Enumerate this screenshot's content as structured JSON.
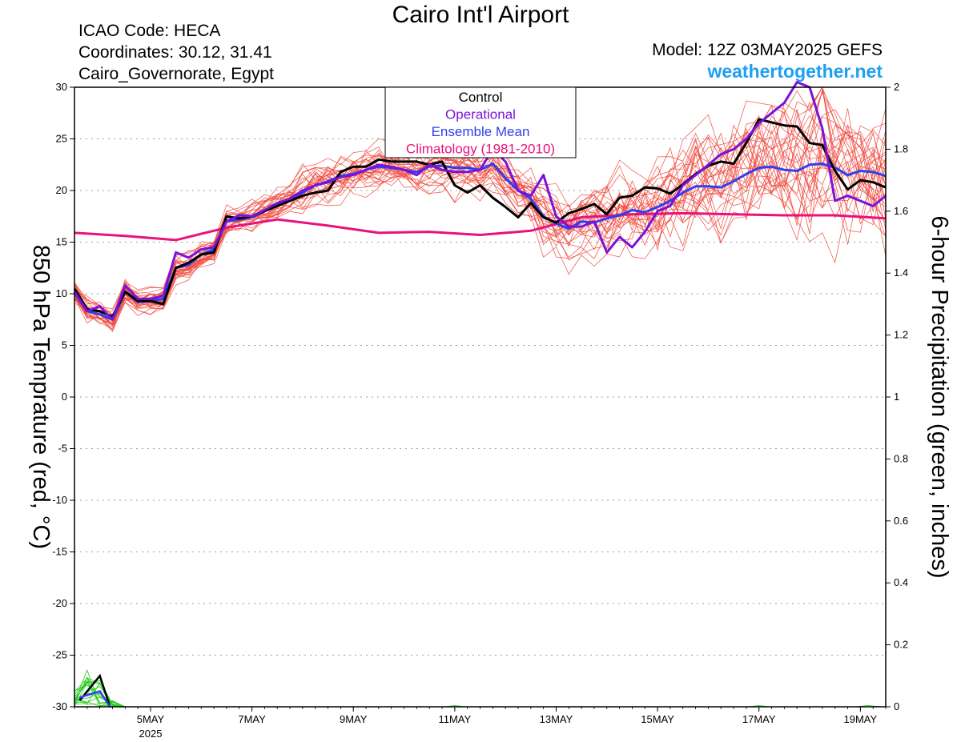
{
  "header": {
    "title": "Cairo Int'l Airport",
    "icao": "ICAO Code: HECA",
    "coordinates": "Coordinates: 30.12, 31.41",
    "region": "Cairo_Governorate, Egypt",
    "model": "Model: 12Z 03MAY2025 GEFS",
    "site": "weathertogether.net"
  },
  "colors": {
    "members": "#f0483c",
    "control": "#000000",
    "operational": "#7a12d8",
    "ensemble_mean": "#2f3ff0",
    "climatology": "#e8127c",
    "precip": "#26cc1e",
    "site": "#1ea0f0"
  },
  "chart_data": {
    "type": "line",
    "x_unit": "day (May 2025, 00Z = integer)",
    "xlim": [
      3.5,
      19.5
    ],
    "ylim": [
      -30,
      30
    ],
    "y2lim": [
      0,
      2
    ],
    "ylabel": "850 hPa Temprature (red, °C)",
    "y2label": "6-hour Precipitation (green, inches)",
    "x_ticks": [
      {
        "x": 5,
        "label": "5MAY",
        "sub": "2025"
      },
      {
        "x": 7,
        "label": "7MAY",
        "sub": ""
      },
      {
        "x": 9,
        "label": "9MAY",
        "sub": ""
      },
      {
        "x": 11,
        "label": "11MAY",
        "sub": ""
      },
      {
        "x": 13,
        "label": "13MAY",
        "sub": ""
      },
      {
        "x": 15,
        "label": "15MAY",
        "sub": ""
      },
      {
        "x": 17,
        "label": "17MAY",
        "sub": ""
      },
      {
        "x": 19,
        "label": "19MAY",
        "sub": ""
      }
    ],
    "y_ticks": [
      30,
      25,
      20,
      15,
      10,
      5,
      0,
      -5,
      -10,
      -15,
      -20,
      -25,
      -30
    ],
    "y2_ticks": [
      2,
      1.8,
      1.6,
      1.4,
      1.2,
      1,
      0.8,
      0.6,
      0.4,
      0.2,
      0
    ],
    "grid": true,
    "legend": {
      "position": "top-center",
      "entries": [
        {
          "label": "Control",
          "color": "#000000"
        },
        {
          "label": "Operational",
          "color": "#7a12d8"
        },
        {
          "label": "Ensemble Mean",
          "color": "#2f3ff0"
        },
        {
          "label": "Climatology (1981-2010)",
          "color": "#e8127c"
        }
      ]
    },
    "series": [
      {
        "name": "Control",
        "color": "#000000",
        "x": [
          3.5,
          3.75,
          4,
          4.25,
          4.5,
          4.75,
          5,
          5.25,
          5.5,
          5.75,
          6,
          6.25,
          6.5,
          6.75,
          7,
          7.25,
          7.5,
          7.75,
          8,
          8.25,
          8.5,
          8.75,
          9,
          9.25,
          9.5,
          9.75,
          10,
          10.25,
          10.5,
          10.75,
          11,
          11.25,
          11.5,
          11.75,
          12,
          12.25,
          12.5,
          12.75,
          13,
          13.25,
          13.5,
          13.75,
          14,
          14.25,
          14.5,
          14.75,
          15,
          15.25,
          15.5,
          15.75,
          16,
          16.25,
          16.5,
          16.75,
          17,
          17.25,
          17.5,
          17.75,
          18,
          18.25,
          18.5,
          18.75,
          19,
          19.25,
          19.5
        ],
        "y": [
          10.5,
          8.5,
          8.3,
          7.8,
          10.2,
          9.3,
          9.3,
          9.0,
          12.5,
          13.0,
          13.8,
          14.0,
          17.5,
          17.3,
          17.5,
          18.0,
          18.5,
          19.0,
          19.5,
          19.8,
          20.0,
          21.8,
          22.3,
          22.3,
          23.0,
          22.8,
          22.8,
          22.8,
          22.5,
          22.8,
          20.5,
          19.8,
          20.5,
          19.3,
          18.4,
          17.4,
          18.8,
          17.4,
          16.9,
          17.8,
          18.2,
          18.7,
          17.7,
          19.3,
          19.5,
          20.3,
          20.2,
          19.7,
          20.6,
          21.6,
          22.4,
          22.8,
          22.6,
          24.6,
          26.9,
          26.6,
          26.3,
          26.2,
          24.6,
          24.4,
          21.9,
          20.1,
          21.0,
          20.8,
          20.3
        ]
      },
      {
        "name": "Operational",
        "color": "#7a12d8",
        "x": [
          3.5,
          3.75,
          4,
          4.25,
          4.5,
          4.75,
          5,
          5.25,
          5.5,
          5.75,
          6,
          6.25,
          6.5,
          6.75,
          7,
          7.25,
          7.5,
          7.75,
          8,
          8.25,
          8.5,
          8.75,
          9,
          9.25,
          9.5,
          9.75,
          10,
          10.25,
          10.5,
          10.75,
          11,
          11.25,
          11.5,
          11.75,
          12,
          12.25,
          12.5,
          12.75,
          13,
          13.25,
          13.5,
          13.75,
          14,
          14.25,
          14.5,
          14.75,
          15,
          15.25,
          15.5,
          15.75,
          16,
          16.25,
          16.5,
          16.75,
          17,
          17.25,
          17.5,
          17.75,
          18,
          18.25,
          18.5,
          18.75,
          19,
          19.25,
          19.5
        ],
        "y": [
          10.2,
          8.3,
          8.8,
          7.5,
          10.8,
          9.5,
          9.5,
          9.8,
          14.0,
          13.5,
          14.3,
          14.5,
          17.0,
          17.6,
          17.5,
          18.1,
          18.8,
          19.2,
          20.0,
          20.5,
          20.8,
          21.3,
          21.5,
          22.0,
          22.5,
          22.3,
          22.0,
          21.5,
          22.5,
          22.0,
          21.8,
          21.8,
          22.0,
          24.0,
          22.8,
          20.0,
          19.5,
          21.5,
          17.5,
          16.5,
          16.5,
          17.0,
          14.0,
          15.5,
          14.5,
          16.0,
          18.0,
          18.5,
          20.5,
          21.5,
          22.5,
          23.5,
          24.0,
          25.0,
          26.5,
          27.5,
          28.5,
          30.5,
          30.0,
          26.0,
          19.0,
          19.5,
          19.0,
          18.5,
          19.5
        ]
      },
      {
        "name": "Ensemble Mean",
        "color": "#2f3ff0",
        "x": [
          3.5,
          3.75,
          4,
          4.25,
          4.5,
          4.75,
          5,
          5.25,
          5.5,
          5.75,
          6,
          6.25,
          6.5,
          6.75,
          7,
          7.25,
          7.5,
          7.75,
          8,
          8.25,
          8.5,
          8.75,
          9,
          9.25,
          9.5,
          9.75,
          10,
          10.25,
          10.5,
          10.75,
          11,
          11.25,
          11.5,
          11.75,
          12,
          12.25,
          12.5,
          12.75,
          13,
          13.25,
          13.5,
          13.75,
          14,
          14.25,
          14.5,
          14.75,
          15,
          15.25,
          15.5,
          15.75,
          16,
          16.25,
          16.5,
          16.75,
          17,
          17.25,
          17.5,
          17.75,
          18,
          18.25,
          18.5,
          18.75,
          19,
          19.25,
          19.5
        ],
        "y": [
          10.1,
          8.3,
          8.0,
          7.5,
          10.2,
          9.2,
          9.3,
          9.5,
          12.5,
          12.8,
          13.8,
          14.3,
          17.0,
          17.2,
          17.4,
          18.0,
          18.6,
          19.2,
          19.8,
          20.5,
          20.9,
          21.4,
          21.6,
          22.0,
          22.3,
          22.2,
          22.0,
          21.8,
          22.3,
          22.4,
          22.2,
          22.2,
          22.0,
          22.6,
          21.2,
          20.0,
          19.2,
          17.5,
          16.8,
          16.3,
          17.0,
          16.9,
          17.3,
          17.6,
          18.1,
          17.9,
          18.4,
          19.0,
          19.8,
          20.4,
          20.4,
          20.3,
          20.9,
          21.6,
          22.2,
          22.3,
          22.0,
          21.9,
          22.5,
          22.6,
          22.2,
          21.5,
          21.9,
          21.8,
          21.4
        ]
      },
      {
        "name": "Climatology (1981-2010)",
        "color": "#e8127c",
        "x": [
          3.5,
          4.5,
          5.5,
          6.5,
          7.5,
          8.5,
          9.5,
          10.5,
          11.5,
          12.5,
          13.5,
          14.5,
          15.5,
          16.5,
          17.5,
          18.5,
          19.5
        ],
        "y": [
          15.9,
          15.6,
          15.2,
          16.4,
          17.2,
          16.6,
          15.9,
          16.0,
          15.7,
          16.1,
          17.4,
          17.7,
          17.8,
          17.7,
          17.6,
          17.6,
          17.3
        ]
      }
    ],
    "members_count": 30,
    "members_note": "30 ensemble members (thin red lines) spread around the ensemble mean, widening after 12MAY",
    "precip_series": [
      {
        "name": "Control precipitation",
        "color": "#000000",
        "x": [
          3.6,
          4.0,
          4.2
        ],
        "y": [
          0.02,
          0.1,
          0.0
        ]
      },
      {
        "name": "Ensemble mean precipitation",
        "color": "#2f3ff0",
        "x": [
          3.6,
          4.0,
          4.2
        ],
        "y": [
          0.03,
          0.05,
          0.0
        ]
      }
    ]
  }
}
